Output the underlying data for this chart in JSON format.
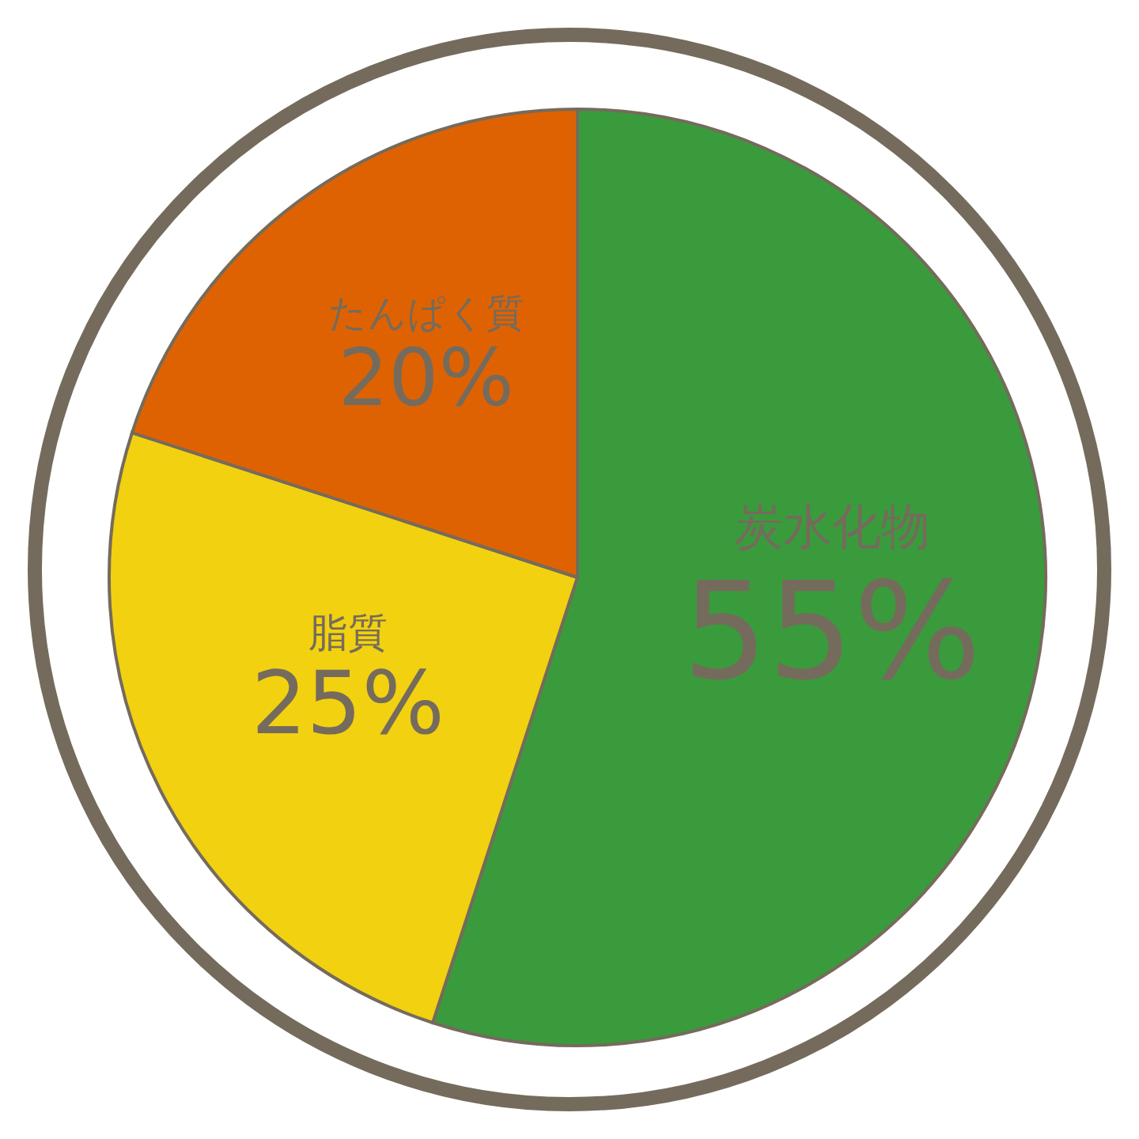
{
  "chart_data": {
    "type": "pie",
    "categories": [
      "炭水化物",
      "脂質",
      "たんぱく質"
    ],
    "values": [
      55,
      25,
      20
    ],
    "value_labels": [
      "55%",
      "25%",
      "20%"
    ],
    "colors": [
      "#3a9b3d",
      "#f2d110",
      "#df6202"
    ]
  }
}
